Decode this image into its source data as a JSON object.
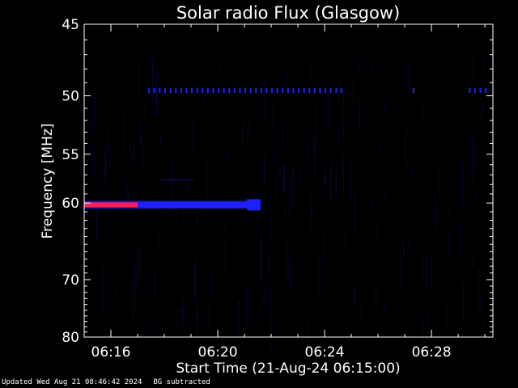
{
  "chart_data": {
    "type": "heatmap",
    "title": "Solar radio Flux (Glasgow)",
    "xlabel": "Start Time (21-Aug-24 06:15:00)",
    "ylabel": "Frequency [MHz]",
    "x_range_minutes": [
      0,
      15.3
    ],
    "x_ticks": [
      {
        "label": "06:16",
        "minute": 1
      },
      {
        "label": "06:20",
        "minute": 5
      },
      {
        "label": "06:24",
        "minute": 9
      },
      {
        "label": "06:28",
        "minute": 13
      }
    ],
    "y_range_mhz": [
      45,
      80
    ],
    "y_scale": "reciprocal",
    "y_ticks": [
      45,
      50,
      55,
      60,
      70,
      80
    ],
    "features": [
      {
        "name": "60 MHz band",
        "freq_mhz": 60.2,
        "t_start_min": 0,
        "t_end_min": 6.6,
        "intensity": "high-to-low"
      },
      {
        "name": "49.5 MHz dotted line",
        "freq_mhz": 49.6,
        "t_start_min": 2.4,
        "t_end_min": 15.3,
        "intensity": "low"
      },
      {
        "name": "57.5 MHz trace",
        "freq_mhz": 57.5,
        "t_start_min": 2.8,
        "t_end_min": 4.1,
        "intensity": "low"
      }
    ],
    "colors": {
      "background": "#000000",
      "axis": "#ffffff",
      "low": "#0a0a4a",
      "mid": "#2020ff",
      "high": "#ff2050"
    }
  },
  "footer": {
    "updated": "Updated Wed Aug 21 08:46:42 2024",
    "note": "BG subtracted"
  }
}
